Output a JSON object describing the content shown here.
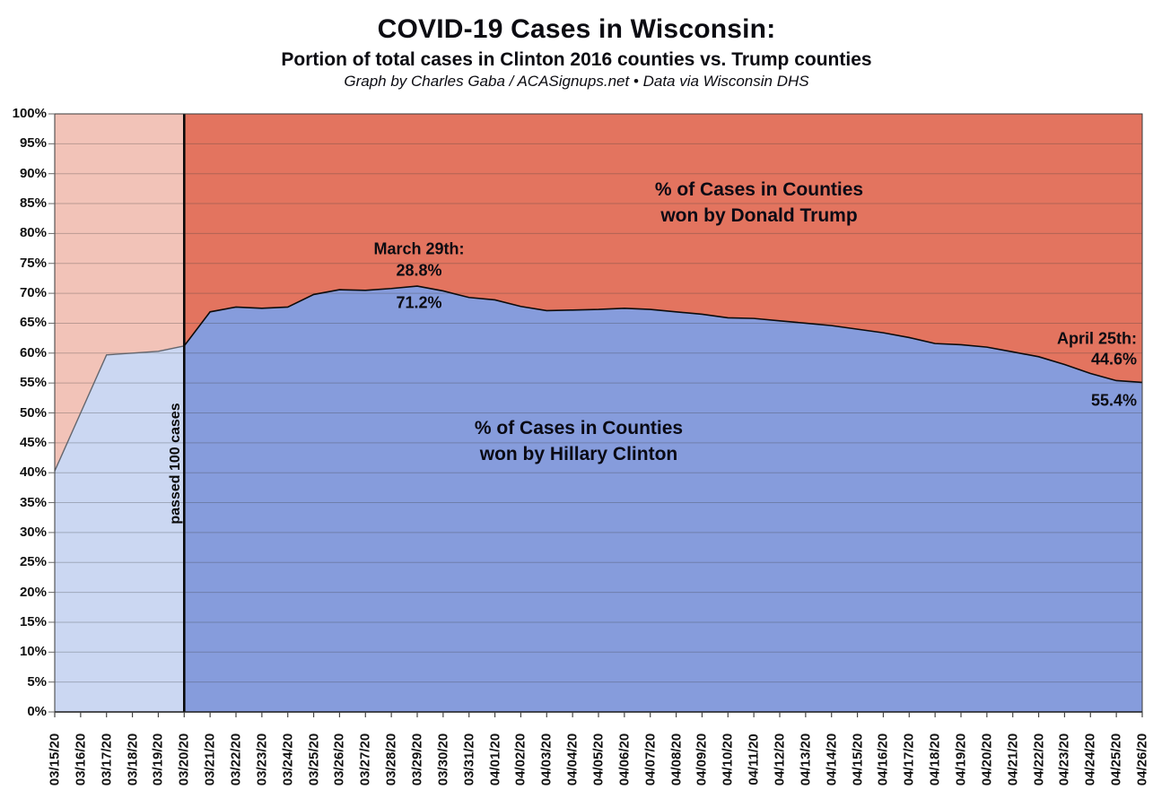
{
  "header": {
    "title": "COVID-19 Cases in Wisconsin:",
    "subtitle": "Portion of total cases in Clinton 2016 counties vs. Trump counties",
    "credit": "Graph by Charles Gaba / ACASignups.net  •  Data via Wisconsin DHS"
  },
  "chart_data": {
    "type": "area",
    "stacked_percent": true,
    "title": "COVID-19 Cases in Wisconsin: Portion of total cases in Clinton 2016 counties vs. Trump counties",
    "x": [
      "03/15/20",
      "03/16/20",
      "03/17/20",
      "03/18/20",
      "03/19/20",
      "03/20/20",
      "03/21/20",
      "03/22/20",
      "03/23/20",
      "03/24/20",
      "03/25/20",
      "03/26/20",
      "03/27/20",
      "03/28/20",
      "03/29/20",
      "03/30/20",
      "03/31/20",
      "04/01/20",
      "04/02/20",
      "04/03/20",
      "04/04/20",
      "04/05/20",
      "04/06/20",
      "04/07/20",
      "04/08/20",
      "04/09/20",
      "04/10/20",
      "04/11/20",
      "04/12/20",
      "04/13/20",
      "04/14/20",
      "04/15/20",
      "04/16/20",
      "04/17/20",
      "04/18/20",
      "04/19/20",
      "04/20/20",
      "04/21/20",
      "04/22/20",
      "04/23/20",
      "04/24/20",
      "04/25/20",
      "04/26/20"
    ],
    "series": [
      {
        "name": "% of Cases in Counties won by Hillary Clinton",
        "color": "#869CDC",
        "faded_color": "#CBD7F2",
        "values": [
          40.3,
          50.0,
          59.7,
          60.0,
          60.3,
          61.2,
          66.9,
          67.7,
          67.5,
          67.7,
          69.8,
          70.6,
          70.5,
          70.8,
          71.2,
          70.4,
          69.3,
          68.9,
          67.8,
          67.1,
          67.2,
          67.3,
          67.5,
          67.3,
          66.9,
          66.5,
          65.9,
          65.8,
          65.4,
          65.0,
          64.6,
          64.0,
          63.4,
          62.6,
          61.6,
          61.4,
          61.0,
          60.2,
          59.4,
          58.1,
          56.6,
          55.4,
          55.1
        ]
      },
      {
        "name": "% of Cases in Counties won by Donald Trump",
        "color": "#E3745F",
        "faded_color": "#F2C3B8",
        "values": [
          59.7,
          50.0,
          40.3,
          40.0,
          39.7,
          38.8,
          33.1,
          32.3,
          32.5,
          32.3,
          30.2,
          29.4,
          29.5,
          29.2,
          28.8,
          29.6,
          30.7,
          31.1,
          32.2,
          32.9,
          32.8,
          32.7,
          32.5,
          32.7,
          33.1,
          33.5,
          34.1,
          34.2,
          34.6,
          35.0,
          35.4,
          36.0,
          36.6,
          37.4,
          38.4,
          38.6,
          39.0,
          39.8,
          40.6,
          41.9,
          43.4,
          44.6,
          44.9
        ]
      }
    ],
    "ylim": [
      0,
      100
    ],
    "y_tick_step": 5,
    "y_ticks": [
      "0%",
      "5%",
      "10%",
      "15%",
      "20%",
      "25%",
      "30%",
      "35%",
      "40%",
      "45%",
      "50%",
      "55%",
      "60%",
      "65%",
      "70%",
      "75%",
      "80%",
      "85%",
      "90%",
      "95%",
      "100%"
    ],
    "grid": "horizontal",
    "x_tick_rotation": -90,
    "threshold": {
      "x": "03/20/20",
      "label": "passed 100 cases"
    },
    "style": {
      "line_color": "#0B0B0B",
      "pre_threshold_line_color": "#63666E",
      "threshold_line_color": "#0A0A0A",
      "grid_overlay": "rgba(60,60,60,0.30)",
      "border_color": "#3A3A3A",
      "tick_color": "#444444"
    },
    "annotations": {
      "march29_title": "March 29th:",
      "march29_trump_value": "28.8%",
      "march29_clinton_value": "71.2%",
      "april25_title": "April 25th:",
      "april25_trump_value": "44.6%",
      "april25_clinton_value": "55.4%",
      "trump_label_line1": "% of Cases in Counties",
      "trump_label_line2": "won by Donald Trump",
      "clinton_label_line1": "% of Cases in Counties",
      "clinton_label_line2": "won by Hillary Clinton"
    }
  }
}
